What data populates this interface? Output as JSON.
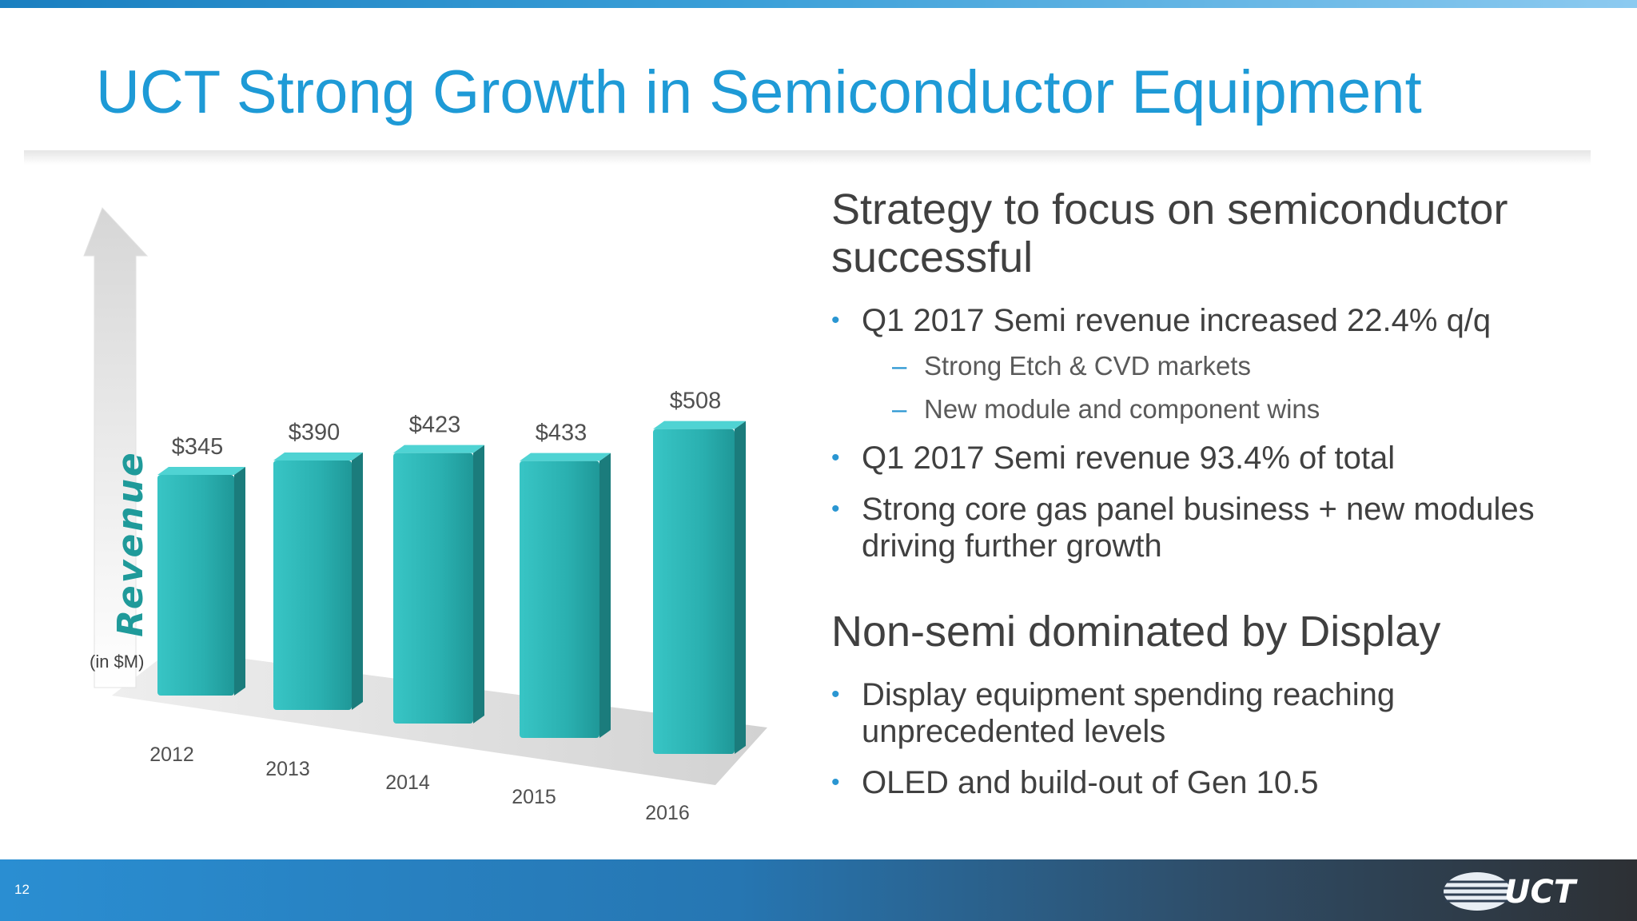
{
  "slide": {
    "title": "UCT Strong Growth in Semiconductor Equipment",
    "number": "12",
    "logo_text": "UCT"
  },
  "colors": {
    "title": "#1e9ad6",
    "bar_front": "#2fb6b6",
    "bar_side": "#1b7c7c",
    "bar_top": "#4fd3d3",
    "footer_start": "#2a8ed2",
    "footer_end": "#2d3034",
    "bullet": "#2a96d2"
  },
  "chart_data": {
    "type": "bar",
    "categories": [
      "2012",
      "2013",
      "2014",
      "2015",
      "2016"
    ],
    "values": [
      345,
      390,
      423,
      433,
      508
    ],
    "value_labels": [
      "$345",
      "$390",
      "$423",
      "$433",
      "$508"
    ],
    "ylabel": "Revenue",
    "unit_note": "(in $M)",
    "ylim": [
      0,
      520
    ],
    "grid": false,
    "legend": "none",
    "style": "3d-perspective"
  },
  "panel": {
    "sections": [
      {
        "heading": "Strategy to focus on semiconductor successful",
        "bullets": [
          {
            "text": "Q1 2017 Semi revenue increased 22.4% q/q",
            "subs": [
              "Strong Etch & CVD markets",
              "New module and component wins"
            ]
          },
          {
            "text": "Q1 2017 Semi revenue 93.4% of total",
            "subs": []
          },
          {
            "text": "Strong core gas panel business + new modules driving further growth",
            "subs": []
          }
        ]
      },
      {
        "heading": "Non-semi dominated by Display",
        "bullets": [
          {
            "text": "Display equipment spending reaching unprecedented levels",
            "subs": []
          },
          {
            "text": "OLED and build-out of Gen 10.5",
            "subs": []
          }
        ]
      }
    ]
  }
}
